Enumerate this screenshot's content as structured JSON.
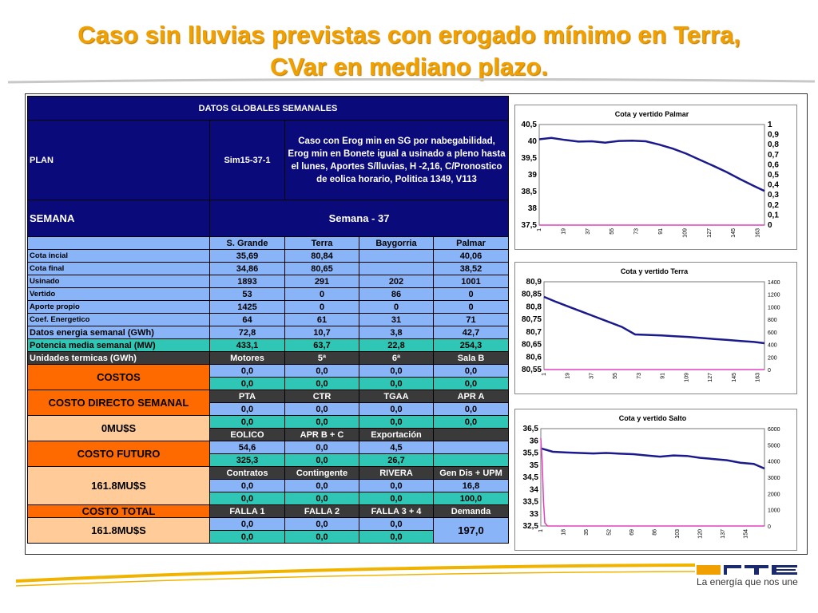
{
  "title": {
    "line1": "Caso sin lluvias previstas con erogado mínimo en Terra,",
    "line2": "CVar en mediano plazo."
  },
  "table": {
    "header": "DATOS GLOBALES SEMANALES",
    "plan_label": "PLAN",
    "plan_value": "Sim15-37-1",
    "plan_desc": "Caso con  Erog min en SG por nabegabilidad, Erog min en Bonete igual a usinado a pleno hasta el lunes, Aportes S/lluvias, H -2,16, C/Pronostico de eolica horario, Politica 1349, V113",
    "semana_label": "SEMANA",
    "semana_value": "Semana - 37",
    "columns": [
      "S. Grande",
      "Terra",
      "Baygorria",
      "Palmar"
    ],
    "rows": [
      {
        "label": "Cota incial",
        "values": [
          "35,69",
          "80,84",
          "",
          "40,06"
        ]
      },
      {
        "label": "Cota final",
        "values": [
          "34,86",
          "80,65",
          "",
          "38,52"
        ]
      },
      {
        "label": "Usinado",
        "values": [
          "1893",
          "291",
          "202",
          "1001"
        ]
      },
      {
        "label": "Vertido",
        "values": [
          "53",
          "0",
          "86",
          "0"
        ]
      },
      {
        "label": "Aporte propio",
        "values": [
          "1425",
          "0",
          "0",
          "0"
        ]
      },
      {
        "label": "Coef. Energetico",
        "values": [
          "64",
          "61",
          "31",
          "71"
        ]
      }
    ],
    "energia": {
      "label": "Datos energia semanal  (GWh)",
      "values": [
        "72,8",
        "10,7",
        "3,8",
        "42,7"
      ]
    },
    "potencia": {
      "label": "Potencia media semanal (MW)",
      "values": [
        "433,1",
        "63,7",
        "22,8",
        "254,3"
      ]
    },
    "termicas": {
      "label": "Unidades termicas (GWh)",
      "values": [
        "Motores",
        "5ª",
        "6ª",
        "Sala B"
      ]
    },
    "costos_label": "COSTOS",
    "costos_rows": [
      [
        "0,0",
        "0,0",
        "0,0",
        "0,0"
      ],
      [
        "0,0",
        "0,0",
        "0,0",
        "0,0"
      ]
    ],
    "costo_directo_label": "COSTO DIRECTO SEMANAL",
    "costo_directo_value": "0MU$S",
    "grp_pta": {
      "headers": [
        "PTA",
        "CTR",
        "TGAA",
        "APR A"
      ],
      "rows": [
        [
          "0,0",
          "0,0",
          "0,0",
          "0,0"
        ],
        [
          "0,0",
          "0,0",
          "0,0",
          "0,0"
        ]
      ]
    },
    "grp_eolico": {
      "headers": [
        "EOLICO",
        "APR B + C",
        "Exportación",
        ""
      ],
      "rows": [
        [
          "54,6",
          "0,0",
          "4,5",
          ""
        ],
        [
          "325,3",
          "0,0",
          "26,7",
          ""
        ]
      ]
    },
    "costo_futuro_label": "COSTO FUTURO",
    "costo_futuro_value": "161.8MU$S",
    "grp_contratos": {
      "headers": [
        "Contratos",
        "Contingente",
        "RIVERA",
        "Gen Dis + UPM"
      ],
      "rows": [
        [
          "0,0",
          "0,0",
          "0,0",
          "16,8"
        ],
        [
          "0,0",
          "0,0",
          "0,0",
          "100,0"
        ]
      ]
    },
    "costo_total_label": "COSTO TOTAL",
    "costo_total_value": "161.8MU$S",
    "grp_falla": {
      "headers": [
        "FALLA 1",
        "FALLA 2",
        "FALLA 3 + 4",
        "Demanda"
      ],
      "rows": [
        [
          "0,0",
          "0,0",
          "0,0"
        ],
        [
          "0,0",
          "0,0",
          "0,0"
        ]
      ],
      "demanda": "197,0"
    }
  },
  "chart_data": [
    {
      "type": "line",
      "title": "Cota y vertido Palmar",
      "ylim": [
        37.5,
        40.5
      ],
      "yticks": [
        "40,5",
        "40",
        "39,5",
        "39",
        "38,5",
        "38",
        "37,5"
      ],
      "y2lim": [
        0,
        1
      ],
      "y2ticks": [
        "1",
        "0,9",
        "0,8",
        "0,7",
        "0,6",
        "0,5",
        "0,4",
        "0,3",
        "0,2",
        "0,1",
        "0"
      ],
      "xlim": [
        1,
        168
      ],
      "xticks": [
        "1",
        "19",
        "37",
        "55",
        "73",
        "91",
        "109",
        "127",
        "145",
        "163"
      ],
      "series": [
        {
          "color": "#1a1a8c",
          "x": [
            1,
            10,
            20,
            30,
            40,
            50,
            60,
            70,
            80,
            90,
            100,
            110,
            120,
            130,
            140,
            150,
            160,
            168
          ],
          "y": [
            40.06,
            40.1,
            40.04,
            39.99,
            40.0,
            39.96,
            40.01,
            40.02,
            40.0,
            39.9,
            39.78,
            39.63,
            39.45,
            39.27,
            39.08,
            38.87,
            38.67,
            38.52
          ]
        },
        {
          "color": "#e040c0",
          "x": [
            1,
            168
          ],
          "y2": [
            0,
            0
          ]
        }
      ]
    },
    {
      "type": "line",
      "title": "Cota y vertido Terra",
      "ylim": [
        80.55,
        80.9
      ],
      "yticks": [
        "80,9",
        "80,85",
        "80,8",
        "80,75",
        "80,7",
        "80,65",
        "80,6",
        "80,55"
      ],
      "y2lim": [
        0,
        1400
      ],
      "y2ticks": [
        "1400",
        "1200",
        "1000",
        "800",
        "600",
        "400",
        "200",
        "0"
      ],
      "xlim": [
        1,
        168
      ],
      "xticks": [
        "1",
        "19",
        "37",
        "55",
        "73",
        "91",
        "109",
        "127",
        "145",
        "163"
      ],
      "series": [
        {
          "color": "#1a1a8c",
          "x": [
            1,
            10,
            20,
            30,
            40,
            50,
            60,
            70,
            80,
            90,
            100,
            110,
            120,
            130,
            140,
            150,
            160,
            168
          ],
          "y": [
            80.84,
            80.82,
            80.8,
            80.78,
            80.76,
            80.74,
            80.72,
            80.69,
            80.688,
            80.686,
            80.683,
            80.68,
            80.676,
            80.672,
            80.668,
            80.664,
            80.66,
            80.655
          ]
        },
        {
          "color": "#e040c0",
          "x": [
            1,
            168
          ],
          "y2": [
            0,
            0
          ]
        }
      ]
    },
    {
      "type": "line",
      "title": "Cota y vertido Salto",
      "ylim": [
        32.5,
        36.5
      ],
      "yticks": [
        "36,5",
        "36",
        "35,5",
        "35",
        "34,5",
        "34",
        "33,5",
        "33",
        "32,5"
      ],
      "y2lim": [
        0,
        6000
      ],
      "y2ticks": [
        "6000",
        "5000",
        "4000",
        "3000",
        "2000",
        "1000",
        "0"
      ],
      "xlim": [
        1,
        168
      ],
      "xticks": [
        "1",
        "18",
        "35",
        "52",
        "69",
        "86",
        "103",
        "120",
        "137",
        "154"
      ],
      "series": [
        {
          "color": "#1a1a8c",
          "x": [
            1,
            10,
            20,
            30,
            40,
            50,
            60,
            70,
            80,
            90,
            100,
            110,
            120,
            130,
            140,
            150,
            160,
            168
          ],
          "y": [
            35.69,
            35.55,
            35.52,
            35.5,
            35.48,
            35.5,
            35.47,
            35.45,
            35.4,
            35.35,
            35.4,
            35.38,
            35.3,
            35.25,
            35.2,
            35.1,
            35.05,
            34.86
          ]
        },
        {
          "color": "#e040c0",
          "x": [
            1,
            2,
            3,
            4,
            6,
            168
          ],
          "y2": [
            5400,
            4000,
            1500,
            200,
            0,
            0
          ]
        }
      ]
    }
  ],
  "logo": {
    "tagline": "La energía que nos une"
  }
}
